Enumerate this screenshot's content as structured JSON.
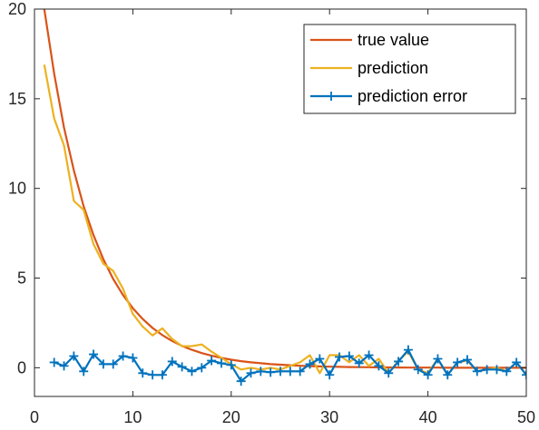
{
  "chart_data": {
    "type": "line",
    "xlim": [
      0,
      50
    ],
    "ylim": [
      -1.6,
      20
    ],
    "x_ticks": [
      0,
      10,
      20,
      30,
      40,
      50
    ],
    "y_ticks": [
      0,
      5,
      10,
      15,
      20
    ],
    "grid": false,
    "box": true,
    "legend_position": "top-right",
    "series": [
      {
        "name": "true value",
        "color": "#D95319",
        "marker": "none",
        "x": [
          1,
          2,
          3,
          4,
          5,
          6,
          7,
          8,
          9,
          10,
          11,
          12,
          13,
          14,
          15,
          16,
          17,
          18,
          19,
          20,
          21,
          22,
          23,
          24,
          25,
          26,
          27,
          28,
          29,
          30,
          31,
          32,
          33,
          34,
          35,
          36,
          37,
          38,
          39,
          40,
          41,
          42,
          43,
          44,
          45,
          46,
          47,
          48,
          49,
          50
        ],
        "y": [
          20,
          16.4,
          13.4,
          11.0,
          9.0,
          7.4,
          6.05,
          4.95,
          4.05,
          3.32,
          2.72,
          2.22,
          1.82,
          1.49,
          1.22,
          1.0,
          0.82,
          0.67,
          0.55,
          0.45,
          0.37,
          0.3,
          0.25,
          0.2,
          0.17,
          0.14,
          0.11,
          0.09,
          0.075,
          0.06,
          0.05,
          0.04,
          0.035,
          0.03,
          0.02,
          0.02,
          0.015,
          0.01,
          0.01,
          0.01,
          0.01,
          0.0,
          0.0,
          0.0,
          0.0,
          0.0,
          0.0,
          0.0,
          0.0,
          0.0
        ]
      },
      {
        "name": "prediction",
        "color": "#EDB120",
        "marker": "none",
        "x": [
          1,
          2,
          3,
          4,
          5,
          6,
          7,
          8,
          9,
          10,
          11,
          12,
          13,
          14,
          15,
          16,
          17,
          18,
          19,
          20,
          21,
          22,
          23,
          24,
          25,
          26,
          27,
          28,
          29,
          30,
          31,
          32,
          33,
          34,
          35,
          36,
          37,
          38,
          39,
          40,
          41,
          42,
          43,
          44,
          45,
          46,
          47,
          48,
          49,
          50
        ],
        "y": [
          16.9,
          13.9,
          12.4,
          9.3,
          8.8,
          6.9,
          5.8,
          5.4,
          4.4,
          3.0,
          2.3,
          1.8,
          2.2,
          1.6,
          1.2,
          1.2,
          1.3,
          0.9,
          0.55,
          0.2,
          -0.1,
          0.0,
          -0.1,
          0.0,
          -0.1,
          0.1,
          0.3,
          0.7,
          -0.3,
          0.7,
          0.7,
          0.3,
          0.7,
          0.1,
          0.5,
          -0.3,
          0.4,
          0.9,
          -0.1,
          -0.3,
          0.5,
          -0.4,
          0.3,
          0.4,
          -0.2,
          -0.1,
          0.0,
          -0.2,
          0.3,
          -0.4
        ]
      },
      {
        "name": "prediction error",
        "color": "#0072BD",
        "marker": "+",
        "x": [
          2,
          3,
          4,
          5,
          6,
          7,
          8,
          9,
          10,
          11,
          12,
          13,
          14,
          15,
          16,
          17,
          18,
          19,
          20,
          21,
          22,
          23,
          24,
          25,
          26,
          27,
          28,
          29,
          30,
          31,
          32,
          33,
          34,
          35,
          36,
          37,
          38,
          39,
          40,
          41,
          42,
          43,
          44,
          45,
          46,
          47,
          48,
          49,
          50
        ],
        "y": [
          0.3,
          0.1,
          0.65,
          -0.2,
          0.75,
          0.2,
          0.2,
          0.65,
          0.55,
          -0.3,
          -0.4,
          -0.4,
          0.35,
          0.05,
          -0.2,
          0.0,
          0.4,
          0.25,
          0.15,
          -0.75,
          -0.3,
          -0.2,
          -0.25,
          -0.2,
          -0.2,
          -0.2,
          0.2,
          0.5,
          -0.4,
          0.6,
          0.65,
          0.25,
          0.7,
          0.1,
          -0.3,
          0.35,
          1.0,
          -0.1,
          -0.4,
          0.5,
          -0.4,
          0.3,
          0.45,
          -0.2,
          -0.1,
          -0.1,
          -0.2,
          0.3,
          -0.4
        ]
      }
    ]
  }
}
